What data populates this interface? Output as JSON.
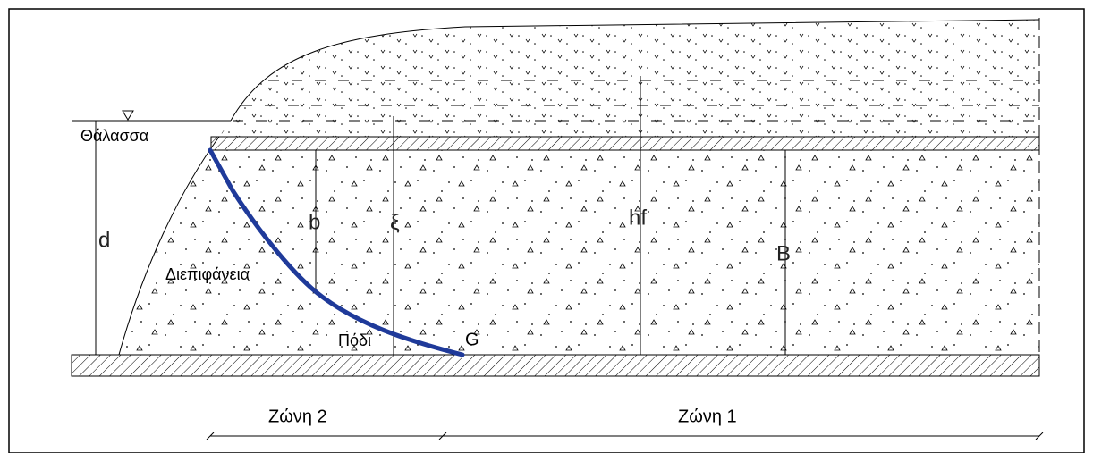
{
  "labels": {
    "sea": "Θάλασσα",
    "interface": "Διεπιφάνεια",
    "toe": "Πόδι",
    "toe_point": "G"
  },
  "dimensions": {
    "d": "d",
    "b": "b",
    "xi": "ξ",
    "hf": "hf",
    "B": "B"
  },
  "zones": {
    "zone2": "Ζώνη 2",
    "zone1": "Ζώνη 1"
  }
}
